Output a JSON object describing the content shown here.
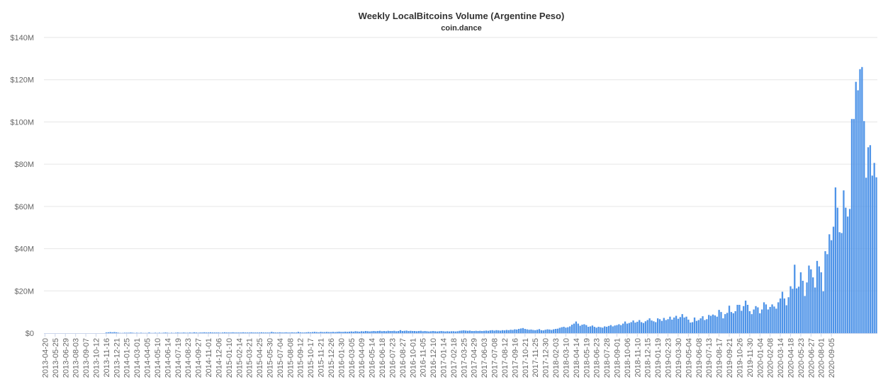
{
  "chart_data": {
    "type": "bar",
    "title": "Weekly LocalBitcoins Volume (Argentine Peso)",
    "subtitle": "coin.dance",
    "xlabel": "",
    "ylabel": "",
    "ylim": [
      0,
      140000000
    ],
    "grid": "horizontal",
    "legend": "none",
    "bar_color": "#4f94e8",
    "y_ticks": [
      {
        "value": 0,
        "label": "$0"
      },
      {
        "value": 20000000,
        "label": "$20M"
      },
      {
        "value": 40000000,
        "label": "$40M"
      },
      {
        "value": 60000000,
        "label": "$60M"
      },
      {
        "value": 80000000,
        "label": "$80M"
      },
      {
        "value": 100000000,
        "label": "$100M"
      },
      {
        "value": 120000000,
        "label": "$120M"
      },
      {
        "value": 140000000,
        "label": "$140M"
      }
    ],
    "x_tick_labels": [
      "2013-04-20",
      "2013-05-25",
      "2013-06-29",
      "2013-08-03",
      "2013-09-07",
      "2013-10-12",
      "2013-11-16",
      "2013-12-21",
      "2014-01-25",
      "2014-03-01",
      "2014-04-05",
      "2014-05-10",
      "2014-06-14",
      "2014-07-19",
      "2014-08-23",
      "2014-09-27",
      "2014-11-01",
      "2014-12-06",
      "2015-01-10",
      "2015-02-14",
      "2015-03-21",
      "2015-04-25",
      "2015-05-30",
      "2015-07-04",
      "2015-08-08",
      "2015-09-12",
      "2015-10-17",
      "2015-11-21",
      "2015-12-26",
      "2016-01-30",
      "2016-03-05",
      "2016-04-09",
      "2016-05-14",
      "2016-06-18",
      "2016-07-23",
      "2016-08-27",
      "2016-10-01",
      "2016-11-05",
      "2016-12-10",
      "2017-01-14",
      "2017-02-18",
      "2017-03-25",
      "2017-04-29",
      "2017-06-03",
      "2017-07-08",
      "2017-08-12",
      "2017-09-16",
      "2017-10-21",
      "2017-11-25",
      "2017-12-30",
      "2018-02-03",
      "2018-03-10",
      "2018-04-14",
      "2018-05-19",
      "2018-06-23",
      "2018-07-28",
      "2018-09-01",
      "2018-10-06",
      "2018-11-10",
      "2018-12-15",
      "2019-01-19",
      "2019-02-23",
      "2019-03-30",
      "2019-05-04",
      "2019-06-08",
      "2019-07-13",
      "2019-08-17",
      "2019-09-21",
      "2019-10-26",
      "2019-11-30",
      "2020-01-04",
      "2020-02-08",
      "2020-03-14",
      "2020-04-18",
      "2020-05-23",
      "2020-06-27",
      "2020-08-01",
      "2020-09-05"
    ],
    "x_start": "2013-04-20",
    "x_interval": "weekly",
    "series": [
      {
        "name": "",
        "values": [
          0,
          0,
          0,
          0,
          0,
          0,
          0,
          0,
          0,
          0,
          0,
          0,
          0,
          0,
          0,
          0,
          0,
          0,
          0,
          0,
          0,
          0,
          0,
          0,
          0,
          0,
          0,
          0,
          0,
          0,
          0.3,
          0.4,
          0.5,
          0.4,
          0.5,
          0.4,
          0.2,
          0.1,
          0.1,
          0.2,
          0.2,
          0.2,
          0.3,
          0.2,
          0.1,
          0.2,
          0.1,
          0.2,
          0.1,
          0.1,
          0.1,
          0.3,
          0.1,
          0.1,
          0.2,
          0.1,
          0.2,
          0.1,
          0.2,
          0.3,
          0.2,
          0.1,
          0.2,
          0.1,
          0.2,
          0.3,
          0.2,
          0.2,
          0.3,
          0.2,
          0.2,
          0.3,
          0.2,
          0.4,
          0.3,
          0.2,
          0.3,
          0.3,
          0.4,
          0.3,
          0.3,
          0.4,
          0.3,
          0.3,
          0.3,
          0.3,
          0.2,
          0.3,
          0.4,
          0.3,
          0.3,
          0.3,
          0.4,
          0.3,
          0.3,
          0.3,
          0.3,
          0.4,
          0.3,
          0.3,
          0.3,
          0.4,
          0.3,
          0.3,
          0.3,
          0.3,
          0.4,
          0.3,
          0.3,
          0.3,
          0.3,
          0.6,
          0.4,
          0.3,
          0.3,
          0.4,
          0.3,
          0.3,
          0.4,
          0.3,
          0.3,
          0.4,
          0.3,
          0.3,
          0.6,
          0.4,
          0.3,
          0.3,
          0.4,
          0.5,
          0.4,
          0.5,
          0.6,
          0.5,
          0.4,
          0.6,
          0.5,
          0.5,
          0.6,
          0.5,
          0.5,
          0.6,
          0.5,
          0.6,
          0.7,
          0.6,
          0.6,
          0.7,
          0.6,
          0.7,
          0.8,
          0.7,
          0.9,
          0.8,
          0.7,
          0.9,
          0.8,
          1.0,
          0.9,
          0.8,
          0.9,
          1.0,
          0.9,
          1.0,
          1.1,
          0.9,
          1.0,
          0.9,
          1.1,
          1.0,
          1.0,
          1.1,
          0.9,
          1.0,
          1.4,
          1.0,
          1.1,
          1.2,
          1.0,
          1.1,
          1.0,
          1.0,
          0.9,
          1.0,
          1.1,
          0.9,
          1.0,
          0.9,
          0.8,
          0.9,
          1.0,
          0.9,
          0.8,
          0.9,
          1.0,
          0.9,
          0.8,
          0.9,
          0.8,
          0.9,
          0.9,
          0.8,
          0.9,
          1.1,
          1.2,
          1.3,
          1.2,
          1.1,
          1.2,
          1.0,
          1.0,
          1.1,
          1.0,
          1.1,
          1.0,
          1.1,
          1.2,
          1.1,
          1.3,
          1.4,
          1.2,
          1.4,
          1.3,
          1.2,
          1.4,
          1.3,
          1.5,
          1.4,
          1.6,
          1.5,
          1.8,
          1.7,
          2.0,
          2.2,
          2.4,
          2.0,
          1.8,
          1.6,
          1.7,
          1.5,
          1.4,
          1.6,
          1.9,
          1.4,
          1.3,
          1.6,
          1.8,
          1.7,
          1.5,
          1.8,
          2.0,
          2.1,
          2.5,
          2.8,
          3.0,
          2.6,
          2.8,
          3.2,
          4.0,
          4.5,
          5.5,
          4.5,
          3.5,
          4.0,
          4.2,
          3.8,
          3.0,
          3.2,
          3.6,
          3.0,
          2.6,
          3.0,
          2.8,
          2.6,
          3.2,
          3.0,
          3.4,
          3.8,
          3.2,
          3.6,
          3.8,
          4.2,
          3.8,
          4.5,
          5.5,
          4.5,
          4.8,
          5.2,
          6.0,
          5.0,
          5.4,
          6.2,
          5.2,
          4.8,
          5.6,
          6.2,
          7.0,
          6.0,
          5.6,
          5.2,
          7.0,
          6.6,
          5.8,
          7.2,
          6.2,
          6.6,
          7.8,
          6.4,
          7.4,
          8.2,
          6.8,
          7.6,
          9.0,
          7.4,
          7.8,
          6.4,
          5.0,
          5.2,
          7.4,
          5.8,
          6.2,
          7.0,
          8.0,
          6.2,
          6.6,
          8.6,
          8.2,
          8.8,
          8.4,
          7.8,
          11.0,
          10.0,
          7.0,
          9.0,
          9.6,
          13.0,
          10.0,
          9.4,
          10.4,
          13.4,
          13.4,
          10.6,
          12.8,
          15.4,
          13.4,
          10.4,
          9.0,
          11.2,
          12.8,
          12.2,
          9.4,
          11.2,
          14.6,
          13.6,
          11.2,
          12.4,
          13.6,
          12.6,
          11.6,
          14.6,
          16.4,
          19.6,
          16.4,
          13.2,
          17.0,
          22.2,
          21.0,
          32.4,
          21.2,
          22.0,
          28.8,
          24.8,
          17.6,
          24.0,
          32.0,
          30.2,
          26.4,
          21.6,
          34.2,
          31.6,
          28.8,
          19.8,
          38.8,
          37.4,
          46.8,
          44.0,
          50.4,
          69.0,
          59.4,
          47.8,
          47.4,
          67.6,
          59.4,
          55.2,
          58.8,
          101.4,
          101.4,
          119.0,
          115.0,
          125.0,
          126.0,
          100.4,
          73.6,
          88.0,
          89.0,
          74.6,
          80.6,
          73.8
        ]
      }
    ]
  }
}
